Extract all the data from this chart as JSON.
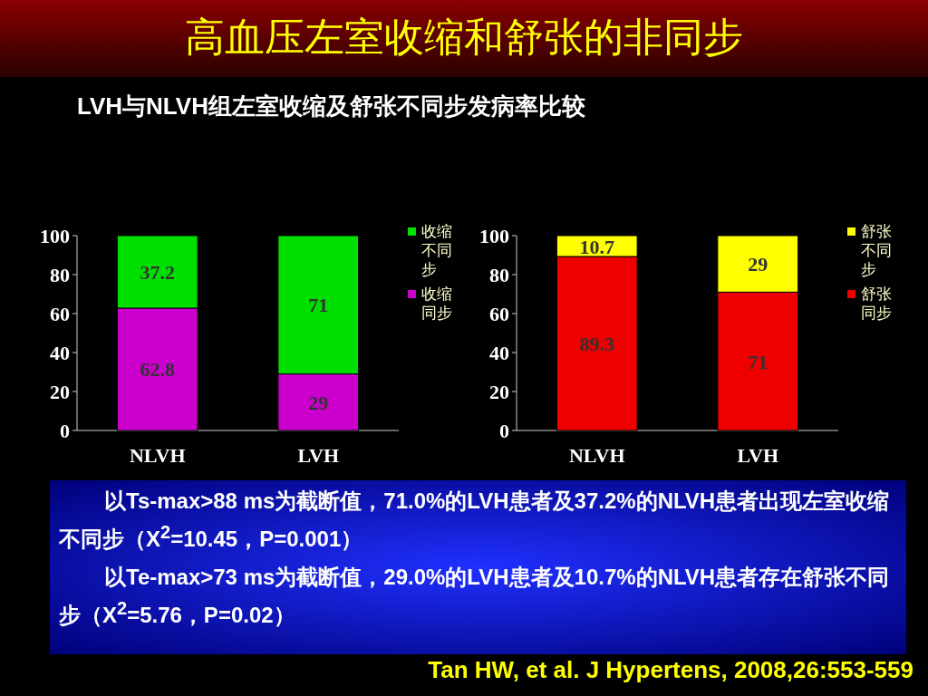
{
  "chart_data": [
    {
      "type": "bar",
      "title": "高血压左室收缩和舒张的非同步",
      "subtitle": "LVH与NLVH组左室收缩及舒张不同步发病率比较",
      "categories": [
        "NLVH",
        "LVH"
      ],
      "stacked": true,
      "ylim": [
        0,
        100
      ],
      "yticks": [
        0,
        20,
        40,
        60,
        80,
        100
      ],
      "grid": false,
      "legend": "right",
      "data_labels": true,
      "series": [
        {
          "name": "收缩同步",
          "color": "#cc00cc",
          "values": [
            62.8,
            29
          ]
        },
        {
          "name": "收缩不同步",
          "color": "#00e000",
          "values": [
            37.2,
            71
          ]
        }
      ],
      "annotations": [
        "以Ts-max>88  ms为截断值，71.0%的LVH患者及37.2%的NLVH患者出现左室收缩不同步（X$^{2}$=10.45，P=0.001）",
        "以Te-max>73  ms为截断值，29.0%的LVH患者及10.7%的NLVH患者存在舒张不同步（X$^{2}$=5.76，P=0.02）",
        "Tan HW, et al. J Hypertens, 2008,26:553-559"
      ]
    },
    {
      "type": "bar",
      "categories": [
        "NLVH",
        "LVH"
      ],
      "stacked": true,
      "ylim": [
        0,
        100
      ],
      "yticks": [
        0,
        20,
        40,
        60,
        80,
        100
      ],
      "grid": false,
      "legend": "right",
      "data_labels": true,
      "series": [
        {
          "name": "舒张同步",
          "color": "#ee0000",
          "values": [
            89.3,
            71
          ]
        },
        {
          "name": "舒张不同步",
          "color": "#ffff00",
          "values": [
            10.7,
            29
          ]
        }
      ]
    }
  ]
}
